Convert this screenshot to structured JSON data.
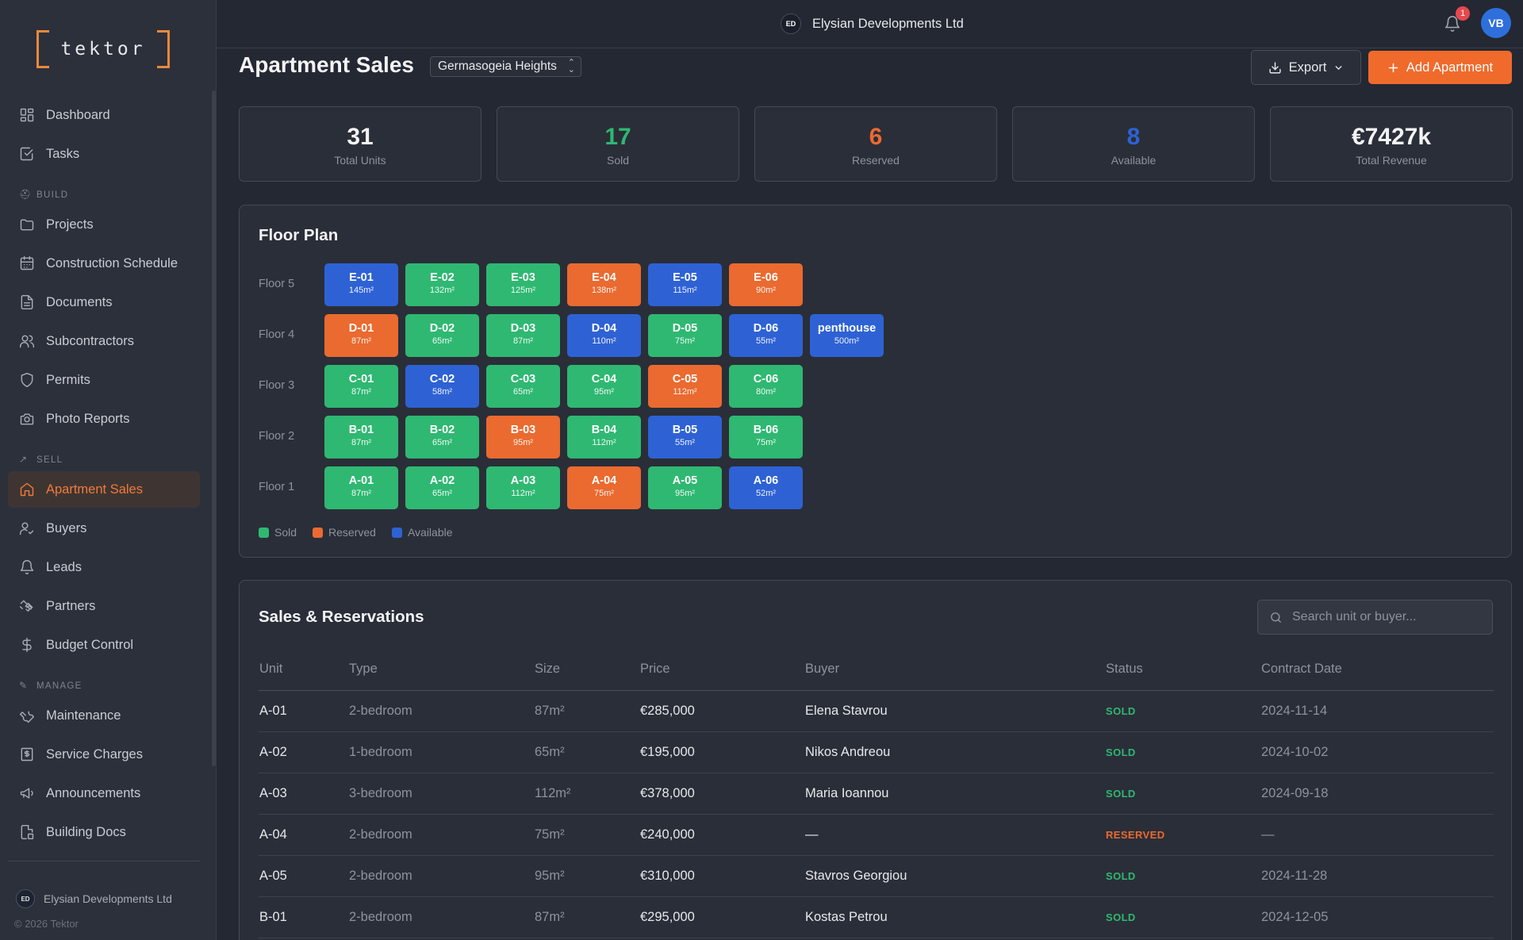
{
  "brand": {
    "logo_text": "tektor",
    "accent": "#f06a2c"
  },
  "sidebar": {
    "items": [
      {
        "label": "Dashboard",
        "icon": "dashboard-icon"
      },
      {
        "label": "Tasks",
        "icon": "check-square-icon"
      },
      {
        "section": "BUILD",
        "icon": "hard-hat-icon"
      },
      {
        "label": "Projects",
        "icon": "folder-icon"
      },
      {
        "label": "Construction Schedule",
        "icon": "calendar-icon"
      },
      {
        "label": "Documents",
        "icon": "document-icon"
      },
      {
        "label": "Subcontractors",
        "icon": "users-icon"
      },
      {
        "label": "Permits",
        "icon": "shield-icon"
      },
      {
        "label": "Photo Reports",
        "icon": "camera-icon"
      },
      {
        "section": "SELL",
        "icon": "trending-up-icon"
      },
      {
        "label": "Apartment Sales",
        "icon": "home-icon",
        "active": true
      },
      {
        "label": "Buyers",
        "icon": "user-check-icon"
      },
      {
        "label": "Leads",
        "icon": "bell-icon"
      },
      {
        "label": "Partners",
        "icon": "handshake-icon"
      },
      {
        "label": "Budget Control",
        "icon": "dollar-icon"
      },
      {
        "section": "MANAGE",
        "icon": "wrench-small-icon"
      },
      {
        "label": "Maintenance",
        "icon": "wrench-icon"
      },
      {
        "label": "Service Charges",
        "icon": "receipt-icon"
      },
      {
        "label": "Announcements",
        "icon": "megaphone-icon"
      },
      {
        "label": "Building Docs",
        "icon": "building-doc-icon"
      }
    ],
    "footer_org": "Elysian Developments Ltd",
    "footer_org_initials": "ED",
    "copyright": "© 2026 Tektor"
  },
  "topbar": {
    "org_name": "Elysian Developments Ltd",
    "org_initials": "ED",
    "notification_count": "1",
    "avatar_initials": "VB"
  },
  "header": {
    "title": "Apartment Sales",
    "project_selected": "Germasogeia Heights",
    "export_label": "Export",
    "add_label": "Add Apartment"
  },
  "stats": [
    {
      "value": "31",
      "label": "Total Units",
      "color": "#f2f3f5"
    },
    {
      "value": "17",
      "label": "Sold",
      "color": "#2fb872"
    },
    {
      "value": "6",
      "label": "Reserved",
      "color": "#ea6a30"
    },
    {
      "value": "8",
      "label": "Available",
      "color": "#2e62d4"
    },
    {
      "value": "€7427k",
      "label": "Total Revenue",
      "color": "#f2f3f5"
    }
  ],
  "floor_plan": {
    "title": "Floor Plan",
    "colors": {
      "sold": "#2fb872",
      "reserved": "#ea6a30",
      "available": "#2e62d4"
    },
    "floors": [
      {
        "label": "Floor 5",
        "units": [
          {
            "code": "E-01",
            "size": "145m²",
            "status": "available"
          },
          {
            "code": "E-02",
            "size": "132m²",
            "status": "sold"
          },
          {
            "code": "E-03",
            "size": "125m²",
            "status": "sold"
          },
          {
            "code": "E-04",
            "size": "138m²",
            "status": "reserved"
          },
          {
            "code": "E-05",
            "size": "115m²",
            "status": "available"
          },
          {
            "code": "E-06",
            "size": "90m²",
            "status": "reserved"
          }
        ]
      },
      {
        "label": "Floor 4",
        "units": [
          {
            "code": "D-01",
            "size": "87m²",
            "status": "reserved"
          },
          {
            "code": "D-02",
            "size": "65m²",
            "status": "sold"
          },
          {
            "code": "D-03",
            "size": "87m²",
            "status": "sold"
          },
          {
            "code": "D-04",
            "size": "110m²",
            "status": "available"
          },
          {
            "code": "D-05",
            "size": "75m²",
            "status": "sold"
          },
          {
            "code": "D-06",
            "size": "55m²",
            "status": "available"
          },
          {
            "code": "penthouse",
            "size": "500m²",
            "status": "available"
          }
        ]
      },
      {
        "label": "Floor 3",
        "units": [
          {
            "code": "C-01",
            "size": "87m²",
            "status": "sold"
          },
          {
            "code": "C-02",
            "size": "58m²",
            "status": "available"
          },
          {
            "code": "C-03",
            "size": "65m²",
            "status": "sold"
          },
          {
            "code": "C-04",
            "size": "95m²",
            "status": "sold"
          },
          {
            "code": "C-05",
            "size": "112m²",
            "status": "reserved"
          },
          {
            "code": "C-06",
            "size": "80m²",
            "status": "sold"
          }
        ]
      },
      {
        "label": "Floor 2",
        "units": [
          {
            "code": "B-01",
            "size": "87m²",
            "status": "sold"
          },
          {
            "code": "B-02",
            "size": "65m²",
            "status": "sold"
          },
          {
            "code": "B-03",
            "size": "95m²",
            "status": "reserved"
          },
          {
            "code": "B-04",
            "size": "112m²",
            "status": "sold"
          },
          {
            "code": "B-05",
            "size": "55m²",
            "status": "available"
          },
          {
            "code": "B-06",
            "size": "75m²",
            "status": "sold"
          }
        ]
      },
      {
        "label": "Floor 1",
        "units": [
          {
            "code": "A-01",
            "size": "87m²",
            "status": "sold"
          },
          {
            "code": "A-02",
            "size": "65m²",
            "status": "sold"
          },
          {
            "code": "A-03",
            "size": "112m²",
            "status": "sold"
          },
          {
            "code": "A-04",
            "size": "75m²",
            "status": "reserved"
          },
          {
            "code": "A-05",
            "size": "95m²",
            "status": "sold"
          },
          {
            "code": "A-06",
            "size": "52m²",
            "status": "available"
          }
        ]
      }
    ],
    "legend": [
      {
        "label": "Sold",
        "status": "sold"
      },
      {
        "label": "Reserved",
        "status": "reserved"
      },
      {
        "label": "Available",
        "status": "available"
      }
    ]
  },
  "sales": {
    "title": "Sales & Reservations",
    "search_placeholder": "Search unit or buyer...",
    "columns": [
      "Unit",
      "Type",
      "Size",
      "Price",
      "Buyer",
      "Status",
      "Contract Date"
    ],
    "rows": [
      {
        "unit": "A-01",
        "type": "2-bedroom",
        "size": "87m²",
        "price": "€285,000",
        "buyer": "Elena Stavrou",
        "status": "SOLD",
        "date": "2024-11-14"
      },
      {
        "unit": "A-02",
        "type": "1-bedroom",
        "size": "65m²",
        "price": "€195,000",
        "buyer": "Nikos Andreou",
        "status": "SOLD",
        "date": "2024-10-02"
      },
      {
        "unit": "A-03",
        "type": "3-bedroom",
        "size": "112m²",
        "price": "€378,000",
        "buyer": "Maria Ioannou",
        "status": "SOLD",
        "date": "2024-09-18"
      },
      {
        "unit": "A-04",
        "type": "2-bedroom",
        "size": "75m²",
        "price": "€240,000",
        "buyer": "—",
        "status": "RESERVED",
        "date": "—"
      },
      {
        "unit": "A-05",
        "type": "2-bedroom",
        "size": "95m²",
        "price": "€310,000",
        "buyer": "Stavros Georgiou",
        "status": "SOLD",
        "date": "2024-11-28"
      },
      {
        "unit": "B-01",
        "type": "2-bedroom",
        "size": "87m²",
        "price": "€295,000",
        "buyer": "Kostas Petrou",
        "status": "SOLD",
        "date": "2024-12-05"
      }
    ]
  }
}
